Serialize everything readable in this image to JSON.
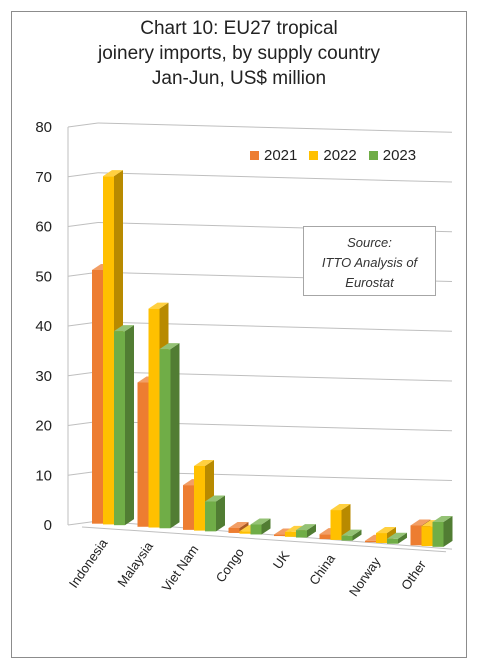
{
  "title_lines": [
    "Chart 10: EU27 tropical",
    "joinery imports, by supply country",
    "Jan-Jun, US$ million"
  ],
  "source_lines": [
    "Source:",
    "ITTO Analysis of",
    "Eurostat"
  ],
  "chart_data": {
    "type": "bar",
    "title": "Chart 10: EU27 tropical joinery imports, by supply country Jan-Jun, US$ million",
    "categories": [
      "Indonesia",
      "Malaysia",
      "Viet Nam",
      "Congo",
      "UK",
      "China",
      "Norway",
      "Other"
    ],
    "series": [
      {
        "name": "2021",
        "color": "#ED7D31",
        "values": [
          51,
          29,
          9,
          1,
          0,
          1,
          0,
          4
        ]
      },
      {
        "name": "2022",
        "color": "#FFC000",
        "values": [
          70,
          44,
          13,
          0.5,
          1,
          6,
          2,
          4
        ]
      },
      {
        "name": "2023",
        "color": "#70AD47",
        "values": [
          39,
          36,
          6,
          2,
          1.5,
          1,
          1,
          5
        ]
      }
    ],
    "yticks": [
      "0",
      "10",
      "20",
      "30",
      "40",
      "50",
      "60",
      "70",
      "80"
    ],
    "ylim": [
      0,
      80
    ],
    "legend_position": "top-right",
    "grid": true
  }
}
